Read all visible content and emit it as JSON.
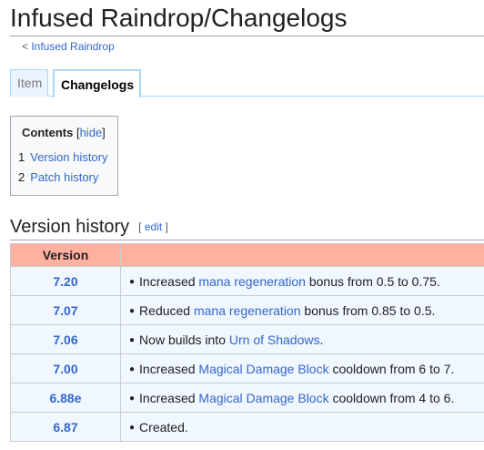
{
  "page_title": "Infused Raindrop/Changelogs",
  "breadcrumb": {
    "prefix": "< ",
    "link": "Infused Raindrop"
  },
  "tabs": [
    {
      "label": "Item"
    },
    {
      "label": "Changelogs"
    }
  ],
  "toc": {
    "title": "Contents",
    "hide_open": " [",
    "hide_label": "hide",
    "hide_close": "]",
    "items": [
      {
        "num": "1",
        "label": "Version history"
      },
      {
        "num": "2",
        "label": "Patch history"
      }
    ]
  },
  "section": {
    "title": "Version history",
    "edit_open": "[ ",
    "edit_label": "edit",
    "edit_close": " ]"
  },
  "table": {
    "header": "Version",
    "rows": [
      {
        "version": "7.20",
        "pre": "Increased ",
        "link": "mana regeneration",
        "post": " bonus from 0.5 to 0.75."
      },
      {
        "version": "7.07",
        "pre": "Reduced ",
        "link": "mana regeneration",
        "post": " bonus from 0.85 to 0.5."
      },
      {
        "version": "7.06",
        "pre": "Now builds into ",
        "link": "Urn of Shadows",
        "post": "."
      },
      {
        "version": "7.00",
        "pre": "Increased ",
        "link": "Magical Damage Block",
        "post": " cooldown from 6 to 7."
      },
      {
        "version": "6.88e",
        "pre": "Increased ",
        "link": "Magical Damage Block",
        "post": " cooldown from 4 to 6."
      },
      {
        "version": "6.87",
        "pre": "Created.",
        "link": "",
        "post": ""
      }
    ]
  }
}
